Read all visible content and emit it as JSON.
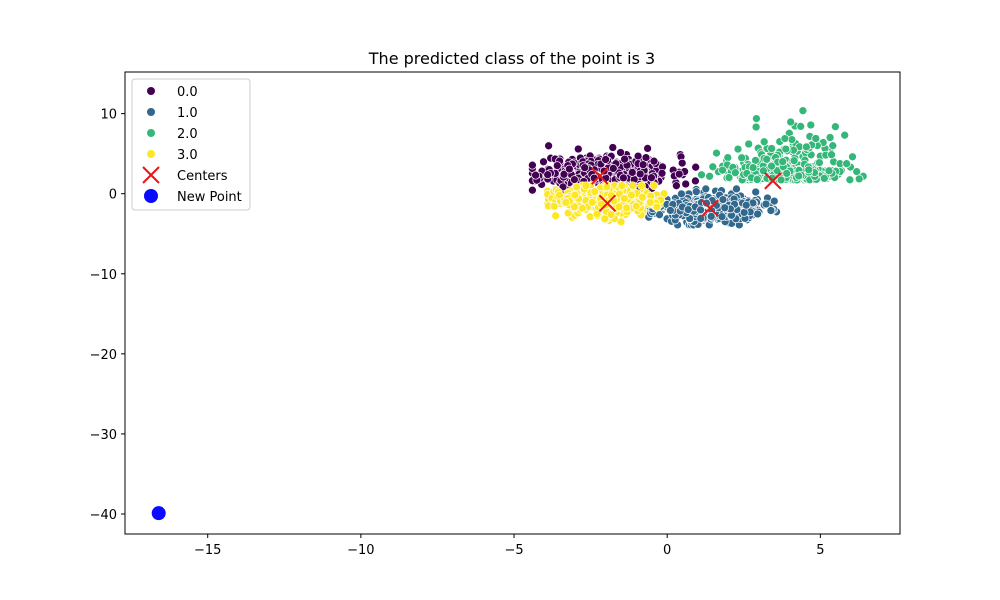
{
  "chart_data": {
    "type": "scatter",
    "title": "The predicted class of the point is 3",
    "xlabel": "",
    "ylabel": "",
    "xlim": [
      -17.7,
      7.6
    ],
    "ylim": [
      -42.5,
      15.2
    ],
    "xticks": [
      -15,
      -10,
      -5,
      0,
      5
    ],
    "xtick_labels": [
      "−15",
      "−10",
      "−5",
      "0",
      "5"
    ],
    "yticks": [
      -40,
      -30,
      -20,
      -10,
      0,
      10
    ],
    "ytick_labels": [
      "−40",
      "−30",
      "−20",
      "−10",
      "0",
      "10"
    ],
    "grid": false,
    "legend": "top-left",
    "clusters": [
      {
        "name": "0.0",
        "color": "#440154",
        "n": 500,
        "cx": -2.0,
        "cy": 2.5,
        "sx": 1.05,
        "sy": 1.2,
        "xmin": -4.4,
        "xmax": 1.5,
        "ymin": 0.3,
        "ymax": 8.3,
        "seed": 11
      },
      {
        "name": "1.0",
        "color": "#31688e",
        "n": 500,
        "cx": 1.3,
        "cy": -1.8,
        "sx": 0.9,
        "sy": 0.85,
        "xmin": -0.6,
        "xmax": 3.9,
        "ymin": -3.9,
        "ymax": 0.6,
        "seed": 23
      },
      {
        "name": "2.0",
        "color": "#35b779",
        "n": 460,
        "cx": 3.8,
        "cy": 2.3,
        "sx": 0.9,
        "sy": 2.4,
        "xmin": 1.0,
        "xmax": 6.4,
        "ymin": -1.2,
        "ymax": 12.6,
        "seed": 37
      },
      {
        "name": "3.0",
        "color": "#fde725",
        "n": 420,
        "cx": -2.0,
        "cy": -0.8,
        "sx": 0.85,
        "sy": 0.9,
        "xmin": -3.9,
        "xmax": -0.1,
        "ymin": -3.6,
        "ymax": 1.0,
        "seed": 53
      }
    ],
    "centers": {
      "name": "Centers",
      "color": "#e8161a",
      "points": [
        {
          "x": -2.2,
          "y": 2.2
        },
        {
          "x": 1.4,
          "y": -1.8
        },
        {
          "x": 3.45,
          "y": 1.6
        },
        {
          "x": -1.95,
          "y": -1.2
        }
      ]
    },
    "new_point": {
      "name": "New Point",
      "color": "#0a0aff",
      "x": -16.6,
      "y": -39.9
    }
  }
}
